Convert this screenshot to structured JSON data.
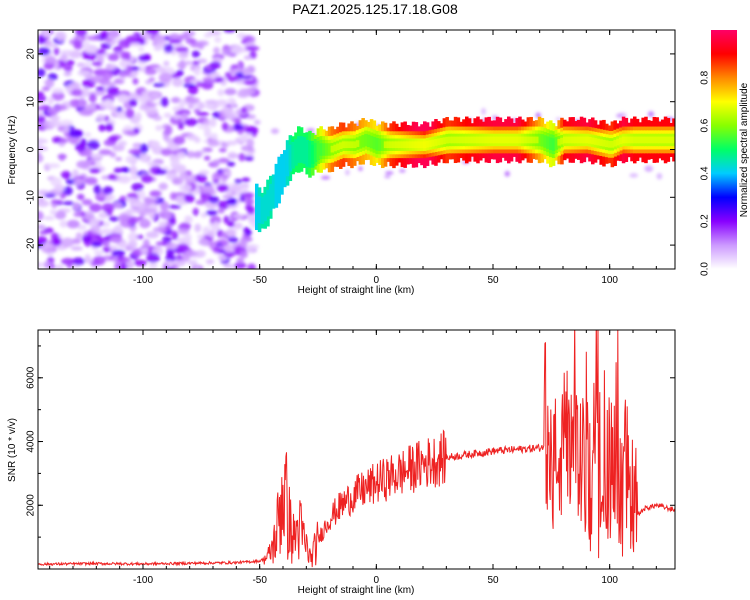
{
  "title": "PAZ1.2025.125.17.18.G08",
  "chart_data": [
    {
      "type": "heatmap",
      "xlabel": "Height of straight line (km)",
      "ylabel": "Frequency (Hz)",
      "xlim": [
        -145,
        128
      ],
      "ylim": [
        -25,
        25
      ],
      "xticks": [
        -100,
        -50,
        0,
        50,
        100
      ],
      "yticks": [
        -20,
        -10,
        0,
        10,
        20
      ],
      "colorbar": {
        "label": "Normalized spectral amplitude",
        "range": [
          0,
          1
        ],
        "ticks": [
          "0.0",
          "0.2",
          "0.4",
          "0.6",
          "0.8"
        ],
        "colors": [
          "#ffffff",
          "#cc99ff",
          "#8800ff",
          "#0000ff",
          "#00ccff",
          "#00ff66",
          "#88ff00",
          "#ffff00",
          "#ff8800",
          "#ff0000",
          "#ff0066"
        ]
      },
      "ridge": {
        "x": [
          -52,
          -50,
          -48,
          -46,
          -44,
          -42,
          -40,
          -38,
          -36,
          -34,
          -32,
          -30,
          -28,
          -25,
          -20,
          -15,
          -10,
          -5,
          0,
          5,
          10,
          20,
          30,
          40,
          50,
          60,
          70,
          75,
          80,
          90,
          100,
          105,
          110,
          120,
          128
        ],
        "y": [
          -12,
          -13,
          -12,
          -10,
          -8,
          -6,
          -4,
          -2,
          -1,
          0,
          0,
          -1,
          -1,
          0,
          0,
          1,
          1,
          2,
          1,
          1,
          1,
          1,
          2,
          2,
          2,
          2,
          2,
          1,
          2,
          2,
          1,
          2,
          2,
          2,
          2
        ],
        "amplitude": [
          0.35,
          0.4,
          0.4,
          0.4,
          0.35,
          0.35,
          0.35,
          0.4,
          0.45,
          0.45,
          0.45,
          0.45,
          0.5,
          0.6,
          0.75,
          0.8,
          0.75,
          0.7,
          0.65,
          0.8,
          0.85,
          0.95,
          0.8,
          0.85,
          0.9,
          0.9,
          0.7,
          0.6,
          0.85,
          0.9,
          0.8,
          0.9,
          0.85,
          0.85,
          0.85
        ]
      }
    },
    {
      "type": "line",
      "xlabel": "Height of straight line (km)",
      "ylabel": "SNR (10 * v/v)",
      "xlim": [
        -145,
        128
      ],
      "ylim": [
        0,
        7500
      ],
      "xticks": [
        -100,
        -50,
        0,
        50,
        100
      ],
      "yticks": [
        2000,
        4000,
        6000
      ],
      "color": "#ee2222",
      "x": [
        -145,
        -120,
        -100,
        -80,
        -60,
        -50,
        -46,
        -43,
        -40,
        -38,
        -36,
        -33,
        -30,
        -28,
        -25,
        -20,
        -15,
        -10,
        -5,
        0,
        10,
        20,
        30,
        40,
        50,
        60,
        70,
        73,
        75,
        78,
        80,
        85,
        90,
        95,
        100,
        103,
        106,
        108,
        110,
        112,
        115,
        120,
        128
      ],
      "y": [
        150,
        170,
        160,
        180,
        200,
        250,
        400,
        1000,
        2600,
        1800,
        900,
        1300,
        700,
        300,
        900,
        1600,
        2000,
        2300,
        2500,
        2700,
        3000,
        3300,
        3500,
        3600,
        3700,
        3750,
        3800,
        3900,
        3000,
        3600,
        3400,
        3700,
        3000,
        3500,
        3300,
        3000,
        2900,
        3100,
        2500,
        1700,
        1900,
        2000,
        1850
      ]
    }
  ]
}
